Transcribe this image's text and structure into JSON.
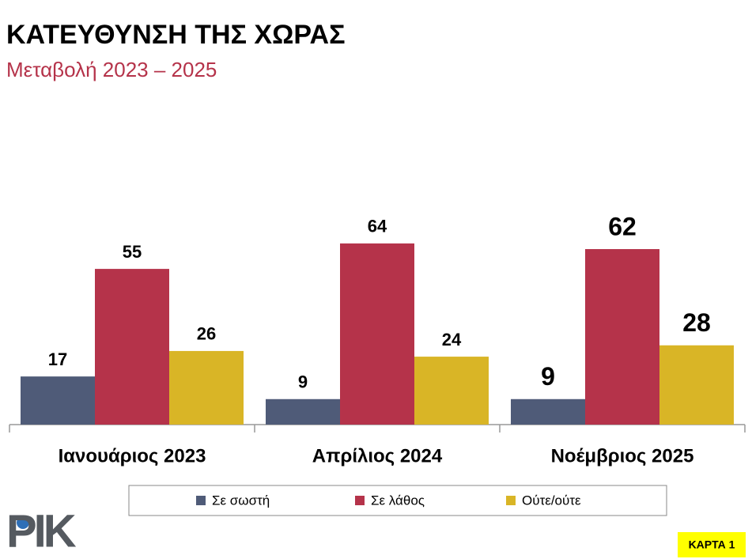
{
  "chart_data": {
    "type": "bar",
    "title": "ΚΑΤΕΥΘΥΝΣΗ ΤΗΣ ΧΩΡΑΣ",
    "subtitle": "Μεταβολή 2023 – 2025",
    "categories": [
      "Ιανουάριος 2023",
      "Απρίλιος 2024",
      "Νοέμβριος 2025"
    ],
    "series": [
      {
        "name": "Σε σωστή",
        "color": "#4f5b78",
        "values": [
          17,
          9,
          9
        ]
      },
      {
        "name": "Σε λάθος",
        "color": "#b5334a",
        "values": [
          55,
          64,
          62
        ]
      },
      {
        "name": "Ούτε/ούτε",
        "color": "#d9b526",
        "values": [
          26,
          24,
          28
        ]
      }
    ],
    "logo": "ΡΙΚ",
    "badge": "ΚΑΡΤΑ 1"
  }
}
